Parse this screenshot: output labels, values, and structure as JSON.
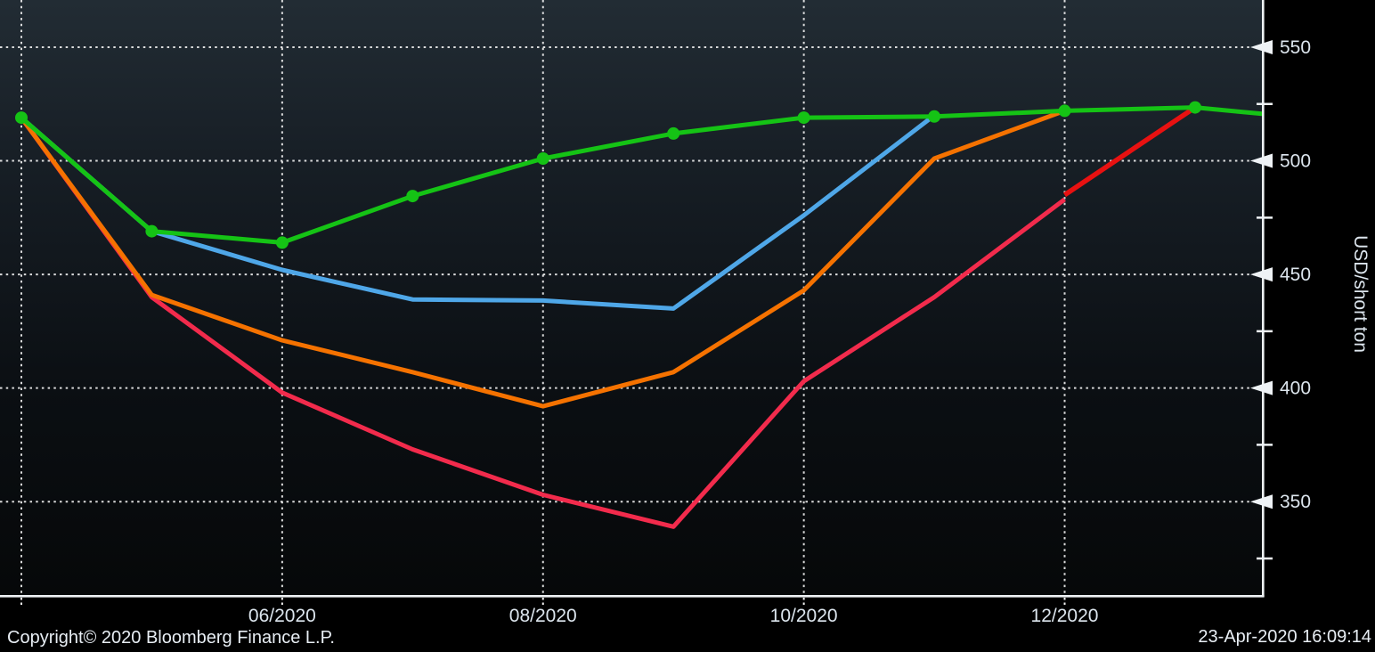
{
  "chart_data": {
    "type": "line",
    "title": "",
    "ylabel": "USD/short ton",
    "grid": true,
    "legend": "none",
    "x_axis": {
      "tick_labels": [
        "06/2020",
        "08/2020",
        "10/2020",
        "12/2020"
      ],
      "gridline_months": [
        "04/2020",
        "06/2020",
        "08/2020",
        "10/2020",
        "12/2020"
      ],
      "range_months": [
        "04/2020",
        "02/2021"
      ]
    },
    "y_axis": {
      "label": "USD/short ton",
      "major_ticks": [
        550,
        500,
        450,
        400,
        350
      ],
      "minor_ticks": [
        525,
        475,
        425,
        375,
        325
      ],
      "range": [
        311,
        571
      ]
    },
    "series": [
      {
        "name": "curve-crimson",
        "color": "#f22b4c",
        "line_width": 5,
        "marker_count": 0,
        "months": [
          "04/2020",
          "05/2020",
          "06/2020",
          "07/2020",
          "08/2020",
          "09/2020",
          "10/2020",
          "11/2020",
          "12/2020"
        ],
        "values": [
          519,
          440,
          398,
          373,
          353,
          339,
          403,
          440,
          483
        ]
      },
      {
        "name": "segment-red",
        "color": "#e81111",
        "line_width": 5.5,
        "marker_count": 0,
        "months": [
          "12/2020",
          "01/2021"
        ],
        "values": [
          485,
          523.5
        ]
      },
      {
        "name": "curve-orange",
        "color": "#f57200",
        "line_width": 5,
        "marker_count": 0,
        "months": [
          "04/2020",
          "05/2020",
          "06/2020",
          "07/2020",
          "08/2020",
          "09/2020",
          "10/2020",
          "11/2020",
          "12/2020"
        ],
        "values": [
          519,
          441,
          421,
          407,
          392,
          407,
          443,
          501,
          522
        ]
      },
      {
        "name": "curve-blue",
        "color": "#4fa7e8",
        "line_width": 5,
        "marker_count": 0,
        "months": [
          "04/2020",
          "05/2020",
          "06/2020",
          "07/2020",
          "08/2020",
          "09/2020",
          "10/2020",
          "11/2020"
        ],
        "values": [
          519,
          469,
          452,
          439,
          438.5,
          435,
          476,
          520
        ]
      },
      {
        "name": "curve-green",
        "color": "#15c315",
        "line_width": 5,
        "marker_count": 10,
        "clipped_last_point": true,
        "months": [
          "04/2020",
          "05/2020",
          "06/2020",
          "07/2020",
          "08/2020",
          "09/2020",
          "10/2020",
          "11/2020",
          "12/2020",
          "01/2021",
          "02/2021"
        ],
        "values": [
          519,
          469,
          464,
          484.5,
          501,
          512,
          519,
          519.5,
          522,
          523.5,
          518
        ]
      }
    ]
  },
  "footer": {
    "copyright": "Copyright© 2020 Bloomberg Finance L.P.",
    "timestamp": "23-Apr-2020 16:09:14"
  },
  "colors": {
    "axis": "#eef2f5",
    "grid_dots": "#f2f2f2",
    "tick_text": "#dce5ed",
    "bg_top": "#222c34",
    "bg_mid": "#12181e",
    "bg_bottom": "#060809",
    "outside": "#000000"
  }
}
